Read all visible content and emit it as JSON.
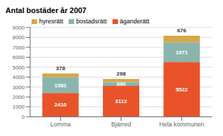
{
  "chart_data": {
    "type": "bar",
    "title": "Antal bostäder år 2007",
    "categories": [
      "Lomma",
      "Bjärred",
      "Hela kommunen"
    ],
    "series": [
      {
        "name": "äganderätt",
        "color": "#e8532a",
        "values": [
          2410,
          3112,
          5522
        ]
      },
      {
        "name": "bostadsrätt",
        "color": "#8ab5ad",
        "values": [
          1581,
          390,
          1971
        ]
      },
      {
        "name": "hyresrätt",
        "color": "#d4a84b",
        "values": [
          378,
          298,
          676
        ]
      }
    ],
    "stacked": true,
    "data_labels": true,
    "ylim": [
      0,
      9000
    ],
    "yticks": [
      0,
      1000,
      2000,
      3000,
      4000,
      5000,
      6000,
      7000,
      8000,
      9000
    ],
    "grid": true,
    "legend": "upper left"
  }
}
